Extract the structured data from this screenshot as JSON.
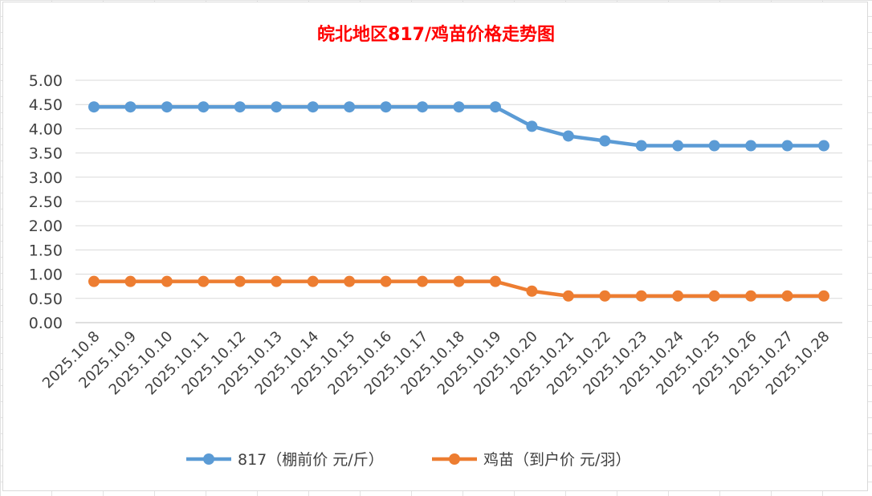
{
  "chart_data": {
    "type": "line",
    "title": "皖北地区817/鸡苗价格走势图",
    "xlabel": "",
    "ylabel": "",
    "categories": [
      "2025.10.8",
      "2025.10.9",
      "2025.10.10",
      "2025.10.11",
      "2025.10.12",
      "2025.10.13",
      "2025.10.14",
      "2025.10.15",
      "2025.10.16",
      "2025.10.17",
      "2025.10.18",
      "2025.10.19",
      "2025.10.20",
      "2025.10.21",
      "2025.10.22",
      "2025.10.23",
      "2025.10.24",
      "2025.10.25",
      "2025.10.26",
      "2025.10.27",
      "2025.10.28"
    ],
    "yticks": [
      "0.00",
      "0.50",
      "1.00",
      "1.50",
      "2.00",
      "2.50",
      "3.00",
      "3.50",
      "4.00",
      "4.50",
      "5.00"
    ],
    "ylim": [
      0,
      5
    ],
    "grid": true,
    "legend": "bottom",
    "series": [
      {
        "name": "817（棚前价 元/斤）",
        "color": "#5b9bd5",
        "values": [
          4.45,
          4.45,
          4.45,
          4.45,
          4.45,
          4.45,
          4.45,
          4.45,
          4.45,
          4.45,
          4.45,
          4.45,
          4.05,
          3.85,
          3.75,
          3.65,
          3.65,
          3.65,
          3.65,
          3.65,
          3.65
        ]
      },
      {
        "name": "鸡苗（到户价 元/羽）",
        "color": "#ed7d31",
        "values": [
          0.85,
          0.85,
          0.85,
          0.85,
          0.85,
          0.85,
          0.85,
          0.85,
          0.85,
          0.85,
          0.85,
          0.85,
          0.65,
          0.55,
          0.55,
          0.55,
          0.55,
          0.55,
          0.55,
          0.55,
          0.55
        ]
      }
    ]
  }
}
